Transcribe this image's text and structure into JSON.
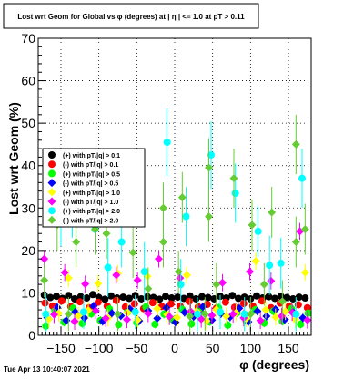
{
  "page": {
    "title": "Lost wrt Geom for Global vs φ (degrees) at | η | <= 1.0 at pT > 0.11",
    "timestamp": "Tue Apr 13 10:40:07 2021"
  },
  "chart_data": {
    "type": "scatter",
    "title": "Lost wrt Geom for Global vs φ (degrees) at | η | <= 1.0 at pT > 0.11",
    "xlabel": "φ (degrees)",
    "ylabel": "Lost wrt Geom (%)",
    "xlim": [
      -180,
      180
    ],
    "ylim": [
      0,
      70
    ],
    "xticks": [
      -150,
      -100,
      -50,
      0,
      50,
      100,
      150
    ],
    "xtick_labels": [
      "−150",
      "−100",
      "−50",
      "0",
      "50",
      "100",
      "150"
    ],
    "yticks": [
      0,
      10,
      20,
      30,
      40,
      50,
      60,
      70
    ],
    "ytick_labels": [
      "0",
      "10",
      "20",
      "30",
      "40",
      "50",
      "60",
      "70"
    ],
    "grid": true,
    "legend_position": "middle-left",
    "series": [
      {
        "name": "(+) with pT/|q| > 0.1",
        "color": "#000000",
        "marker": "circle",
        "points": [
          [
            -172,
            9.5
          ],
          [
            -164,
            8.9
          ],
          [
            -156,
            9.2
          ],
          [
            -148,
            8.7
          ],
          [
            -140,
            9.4
          ],
          [
            -132,
            8.6
          ],
          [
            -124,
            9.1
          ],
          [
            -116,
            8.8
          ],
          [
            -108,
            9.6
          ],
          [
            -100,
            8.9
          ],
          [
            -92,
            8.5
          ],
          [
            -84,
            9.3
          ],
          [
            -76,
            8.8
          ],
          [
            -68,
            9.0
          ],
          [
            -60,
            8.7
          ],
          [
            -52,
            9.4
          ],
          [
            -44,
            8.6
          ],
          [
            -36,
            9.1
          ],
          [
            -28,
            8.9
          ],
          [
            -20,
            8.5
          ],
          [
            -12,
            9.2
          ],
          [
            -4,
            8.8
          ],
          [
            4,
            9.0
          ],
          [
            12,
            8.7
          ],
          [
            20,
            9.3
          ],
          [
            28,
            8.6
          ],
          [
            36,
            9.1
          ],
          [
            44,
            8.9
          ],
          [
            52,
            8.6
          ],
          [
            60,
            9.2
          ],
          [
            68,
            8.8
          ],
          [
            76,
            9.4
          ],
          [
            84,
            8.7
          ],
          [
            92,
            9.0
          ],
          [
            100,
            8.6
          ],
          [
            108,
            9.3
          ],
          [
            116,
            8.8
          ],
          [
            124,
            9.1
          ],
          [
            132,
            8.7
          ],
          [
            140,
            9.2
          ],
          [
            148,
            8.9
          ],
          [
            156,
            8.6
          ],
          [
            164,
            9.0
          ],
          [
            172,
            8.8
          ]
        ],
        "errors": [
          0.4,
          0.4,
          0.4,
          0.4,
          0.4,
          0.4,
          0.4,
          0.4,
          0.4,
          0.4,
          0.4,
          0.4,
          0.4,
          0.4,
          0.4,
          0.4,
          0.4,
          0.4,
          0.4,
          0.4,
          0.4,
          0.4,
          0.4,
          0.4,
          0.4,
          0.4,
          0.4,
          0.4,
          0.4,
          0.4,
          0.4,
          0.4,
          0.4,
          0.4,
          0.4,
          0.4,
          0.4,
          0.4,
          0.4,
          0.4,
          0.4,
          0.4,
          0.4,
          0.4
        ]
      },
      {
        "name": "(-) with pT/|q| > 0.1",
        "color": "#ff0000",
        "marker": "circle",
        "points": [
          [
            -171,
            7.6
          ],
          [
            -161,
            6.9
          ],
          [
            -149,
            8.1
          ],
          [
            -137,
            6.8
          ],
          [
            -125,
            7.9
          ],
          [
            -113,
            6.5
          ],
          [
            -101,
            7.8
          ],
          [
            -89,
            6.9
          ],
          [
            -77,
            8.2
          ],
          [
            -65,
            6.7
          ],
          [
            -53,
            7.4
          ],
          [
            -41,
            6.3
          ],
          [
            -29,
            7.7
          ],
          [
            -17,
            6.8
          ],
          [
            -5,
            7.4
          ],
          [
            7,
            6.9
          ],
          [
            19,
            8.0
          ],
          [
            31,
            6.7
          ],
          [
            43,
            7.3
          ],
          [
            55,
            6.4
          ],
          [
            67,
            7.8
          ],
          [
            79,
            6.6
          ],
          [
            91,
            7.5
          ],
          [
            103,
            6.9
          ],
          [
            115,
            8.1
          ],
          [
            127,
            6.5
          ],
          [
            139,
            7.6
          ],
          [
            151,
            6.9
          ],
          [
            163,
            7.2
          ],
          [
            175,
            6.5
          ]
        ],
        "errors": [
          0.6,
          0.6,
          0.6,
          0.6,
          0.6,
          0.6,
          0.6,
          0.6,
          0.6,
          0.6,
          0.6,
          0.6,
          0.6,
          0.6,
          0.6,
          0.6,
          0.6,
          0.6,
          0.6,
          0.6,
          0.6,
          0.6,
          0.6,
          0.6,
          0.6,
          0.6,
          0.6,
          0.6,
          0.6,
          0.6
        ]
      },
      {
        "name": "(+) with pT/|q| > 0.5",
        "color": "#00ff00",
        "marker": "circle",
        "points": [
          [
            -170,
            2.2
          ],
          [
            -158,
            5.8
          ],
          [
            -146,
            3.1
          ],
          [
            -134,
            6.4
          ],
          [
            -122,
            2.8
          ],
          [
            -110,
            5.1
          ],
          [
            -98,
            3.5
          ],
          [
            -86,
            6.2
          ],
          [
            -74,
            2.5
          ],
          [
            -62,
            5.5
          ],
          [
            -50,
            3.0
          ],
          [
            -38,
            6.7
          ],
          [
            -26,
            2.6
          ],
          [
            -14,
            5.0
          ],
          [
            -2,
            3.6
          ],
          [
            10,
            6.1
          ],
          [
            22,
            2.7
          ],
          [
            34,
            5.6
          ],
          [
            46,
            3.2
          ],
          [
            58,
            6.5
          ],
          [
            70,
            2.4
          ],
          [
            82,
            5.3
          ],
          [
            94,
            3.4
          ],
          [
            106,
            6.0
          ],
          [
            118,
            2.9
          ],
          [
            130,
            5.7
          ],
          [
            142,
            3.3
          ],
          [
            154,
            6.3
          ],
          [
            166,
            2.6
          ],
          [
            176,
            5.2
          ]
        ],
        "errors": [
          1.0,
          1.0,
          1.0,
          1.0,
          1.0,
          1.0,
          1.0,
          1.0,
          1.0,
          1.0,
          1.0,
          1.0,
          1.0,
          1.0,
          1.0,
          1.0,
          1.0,
          1.0,
          1.0,
          1.0,
          1.0,
          1.0,
          1.0,
          1.0,
          1.0,
          1.0,
          1.0,
          1.0,
          1.0,
          1.0
        ]
      },
      {
        "name": "(-) with pT/|q| > 0.5",
        "color": "#0000ff",
        "marker": "diamond",
        "points": [
          [
            -168,
            4.2
          ],
          [
            -155,
            6.6
          ],
          [
            -143,
            3.5
          ],
          [
            -131,
            5.5
          ],
          [
            -119,
            4.1
          ],
          [
            -107,
            6.9
          ],
          [
            -95,
            3.3
          ],
          [
            -83,
            5.2
          ],
          [
            -71,
            4.6
          ],
          [
            -59,
            6.2
          ],
          [
            -47,
            3.4
          ],
          [
            -35,
            5.8
          ],
          [
            -23,
            4.0
          ],
          [
            -11,
            6.5
          ],
          [
            1,
            3.1
          ],
          [
            13,
            5.4
          ],
          [
            25,
            4.4
          ],
          [
            37,
            6.7
          ],
          [
            49,
            3.6
          ],
          [
            61,
            5.1
          ],
          [
            73,
            4.3
          ],
          [
            85,
            6.4
          ],
          [
            97,
            3.2
          ],
          [
            109,
            5.7
          ],
          [
            121,
            4.5
          ],
          [
            133,
            6.1
          ],
          [
            145,
            3.7
          ],
          [
            157,
            5.3
          ],
          [
            169,
            4.1
          ]
        ],
        "errors": [
          1.0,
          1.0,
          1.0,
          1.0,
          1.0,
          1.0,
          1.0,
          1.0,
          1.0,
          1.0,
          1.0,
          1.0,
          1.0,
          1.0,
          1.0,
          1.0,
          1.0,
          1.0,
          1.0,
          1.0,
          1.0,
          1.0,
          1.0,
          1.0,
          1.0,
          1.0,
          1.0,
          1.0,
          1.0
        ]
      },
      {
        "name": "(+) with pT/|q| > 1.0",
        "color": "#ffff00",
        "marker": "diamond",
        "points": [
          [
            -166,
            3.8
          ],
          [
            -153,
            5.2
          ],
          [
            -140,
            13.5
          ],
          [
            -127,
            4.6
          ],
          [
            -114,
            5.9
          ],
          [
            -101,
            12.2
          ],
          [
            -88,
            4.1
          ],
          [
            -75,
            14.6
          ],
          [
            -62,
            5.4
          ],
          [
            -49,
            3.6
          ],
          [
            -36,
            13.9
          ],
          [
            -23,
            6.3
          ],
          [
            -10,
            4.9
          ],
          [
            3,
            4.2
          ],
          [
            16,
            14.2
          ],
          [
            29,
            5.7
          ],
          [
            42,
            3.4
          ],
          [
            55,
            6.1
          ],
          [
            68,
            4.5
          ],
          [
            81,
            5.3
          ],
          [
            94,
            3.9
          ],
          [
            107,
            17.5
          ],
          [
            120,
            6.0
          ],
          [
            133,
            4.3
          ],
          [
            146,
            5.6
          ],
          [
            159,
            3.7
          ],
          [
            172,
            14.8
          ]
        ],
        "errors": [
          2.0,
          2.0,
          2.0,
          2.0,
          2.0,
          2.0,
          2.0,
          2.0,
          2.0,
          2.0,
          2.0,
          2.0,
          2.0,
          2.0,
          2.0,
          2.0,
          2.0,
          2.0,
          2.0,
          2.0,
          2.0,
          2.0,
          2.0,
          2.0,
          2.0,
          2.0,
          2.0
        ]
      },
      {
        "name": "(-) with pT/|q| > 1.0",
        "color": "#ff00ff",
        "marker": "diamond",
        "points": [
          [
            -172,
            18.0
          ],
          [
            -159,
            4.9
          ],
          [
            -145,
            14.8
          ],
          [
            -132,
            3.3
          ],
          [
            -118,
            12.1
          ],
          [
            -104,
            5.8
          ],
          [
            -91,
            4.0
          ],
          [
            -77,
            14.2
          ],
          [
            -63,
            3.7
          ],
          [
            -49,
            13.0
          ],
          [
            -35,
            5.1
          ],
          [
            -21,
            18.0
          ],
          [
            -7,
            4.4
          ],
          [
            7,
            13.5
          ],
          [
            21,
            5.6
          ],
          [
            35,
            3.8
          ],
          [
            49,
            4.7
          ],
          [
            63,
            12.4
          ],
          [
            77,
            5.0
          ],
          [
            91,
            4.1
          ],
          [
            99,
            15.0
          ],
          [
            113,
            3.5
          ],
          [
            127,
            12.8
          ],
          [
            141,
            4.5
          ],
          [
            155,
            5.4
          ],
          [
            165,
            24.5
          ],
          [
            175,
            3.6
          ]
        ],
        "errors": [
          2.0,
          2.0,
          2.0,
          2.0,
          2.0,
          2.0,
          2.0,
          2.0,
          2.0,
          2.0,
          2.0,
          2.0,
          2.0,
          2.0,
          2.0,
          2.0,
          2.0,
          2.0,
          2.0,
          2.0,
          2.0,
          2.0,
          2.0,
          2.0,
          2.0,
          2.0,
          2.0
        ]
      },
      {
        "name": "(+) with pT/|q| > 2.0",
        "color": "#00ffff",
        "marker": "circle",
        "points": [
          [
            -170,
            5.0
          ],
          [
            -150,
            28.0
          ],
          [
            -135,
            31.0
          ],
          [
            -120,
            5.5
          ],
          [
            -105,
            25.0
          ],
          [
            -88,
            16.0
          ],
          [
            -70,
            22.0
          ],
          [
            -52,
            5.5
          ],
          [
            -40,
            15.0
          ],
          [
            -10,
            45.5
          ],
          [
            8,
            12.0
          ],
          [
            15,
            28.0
          ],
          [
            30,
            5.0
          ],
          [
            48,
            42.5
          ],
          [
            60,
            5.5
          ],
          [
            80,
            33.5
          ],
          [
            92,
            5.0
          ],
          [
            110,
            24.5
          ],
          [
            125,
            16.5
          ],
          [
            140,
            17.0
          ],
          [
            160,
            5.0
          ],
          [
            168,
            37.0
          ]
        ],
        "errors": [
          5.0,
          7.0,
          8.0,
          4.0,
          6.0,
          7.0,
          6.0,
          4.0,
          7.0,
          8.0,
          6.0,
          7.0,
          4.0,
          8.0,
          4.0,
          7.0,
          4.0,
          6.0,
          7.0,
          6.0,
          4.0,
          7.0
        ]
      },
      {
        "name": "(-) with pT/|q| > 2.0",
        "color": "#66cc33",
        "marker": "diamond",
        "points": [
          [
            -172,
            13.0
          ],
          [
            -155,
            26.0
          ],
          [
            -140,
            5.0
          ],
          [
            -130,
            22.0
          ],
          [
            -105,
            25.0
          ],
          [
            -90,
            24.0
          ],
          [
            -75,
            5.0
          ],
          [
            -55,
            19.5
          ],
          [
            -35,
            11.0
          ],
          [
            -15,
            30.0
          ],
          [
            -15,
            22.0
          ],
          [
            5,
            15.0
          ],
          [
            10,
            32.5
          ],
          [
            20,
            4.5
          ],
          [
            40,
            5.0
          ],
          [
            45,
            28.0
          ],
          [
            45,
            39.5
          ],
          [
            55,
            12.0
          ],
          [
            78,
            37.0
          ],
          [
            100,
            5.0
          ],
          [
            102,
            26.0
          ],
          [
            118,
            12.0
          ],
          [
            128,
            29.0
          ],
          [
            142,
            8.0
          ],
          [
            160,
            45.0
          ],
          [
            160,
            22.0
          ],
          [
            172,
            25.0
          ]
        ],
        "errors": [
          4.0,
          6.0,
          4.0,
          6.0,
          6.0,
          6.0,
          4.0,
          6.0,
          5.0,
          6.0,
          6.0,
          5.0,
          6.0,
          4.0,
          4.0,
          6.0,
          7.0,
          5.0,
          7.0,
          4.0,
          6.0,
          5.0,
          6.0,
          5.0,
          7.0,
          6.0,
          6.0
        ]
      }
    ]
  }
}
